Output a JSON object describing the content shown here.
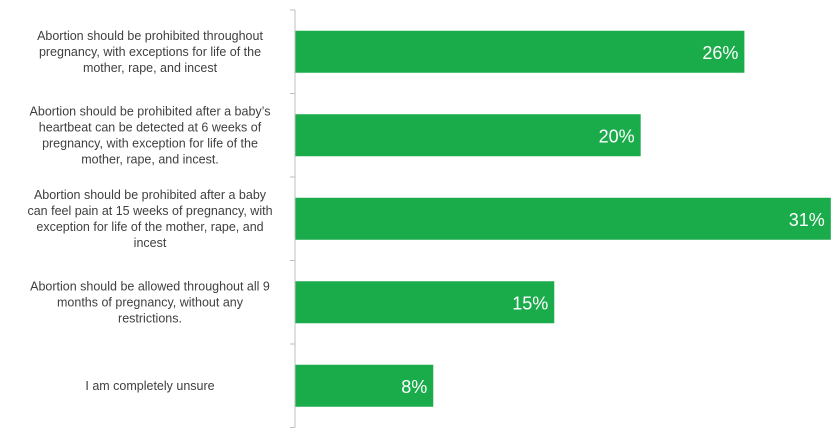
{
  "chart_data": {
    "type": "bar",
    "orientation": "horizontal",
    "categories": [
      [
        "Abortion should be prohibited throughout",
        "pregnancy, with exceptions for life of the",
        "mother, rape, and incest"
      ],
      [
        "Abortion should be prohibited after a baby’s",
        "heartbeat can be detected at 6 weeks of",
        "pregnancy, with exception for life of the",
        "mother, rape, and incest."
      ],
      [
        "Abortion should be prohibited after a baby",
        "can feel pain at 15 weeks of pregnancy, with",
        "exception for life of the mother, rape, and",
        "incest"
      ],
      [
        "Abortion should be allowed throughout all 9",
        "months of pregnancy, without any",
        "restrictions."
      ],
      [
        "I am completely unsure"
      ]
    ],
    "values": [
      26,
      20,
      31,
      15,
      8
    ],
    "data_labels": [
      "26%",
      "20%",
      "31%",
      "15%",
      "8%"
    ],
    "xlim": [
      0,
      31.3
    ],
    "grid": false,
    "legend": "none",
    "colors": {
      "bar": "#1aac4b",
      "axis": "#bfbfbf",
      "label_text": "#404040",
      "data_label_text": "#ffffff"
    }
  }
}
